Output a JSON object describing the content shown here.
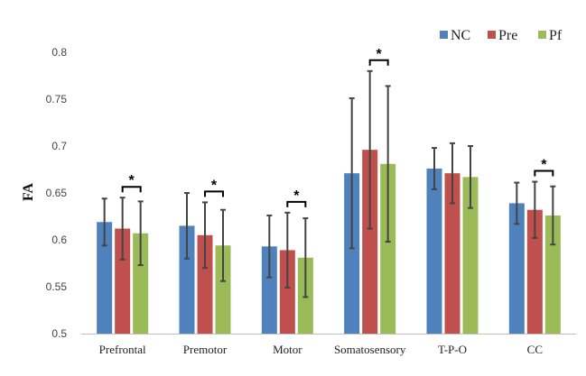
{
  "chart_data": {
    "type": "bar",
    "title": "",
    "xlabel": "",
    "ylabel": "FA",
    "ylim": [
      0.5,
      0.8
    ],
    "yticks": [
      "0.5",
      "0.55",
      "0.6",
      "0.65",
      "0.7",
      "0.75",
      "0.8"
    ],
    "categories": [
      "Prefrontal",
      "Premotor",
      "Motor",
      "Somatosensory",
      "T-P-O",
      "CC"
    ],
    "series": [
      {
        "name": "NC",
        "color": "#4f81bd",
        "values": [
          0.619,
          0.615,
          0.593,
          0.671,
          0.676,
          0.639
        ],
        "errors": [
          0.025,
          0.035,
          0.033,
          0.08,
          0.022,
          0.022
        ]
      },
      {
        "name": "Pre",
        "color": "#c0504d",
        "values": [
          0.612,
          0.605,
          0.589,
          0.696,
          0.671,
          0.632
        ],
        "errors": [
          0.033,
          0.035,
          0.04,
          0.084,
          0.032,
          0.03
        ]
      },
      {
        "name": "Pf",
        "color": "#9bbb59",
        "values": [
          0.607,
          0.594,
          0.581,
          0.681,
          0.667,
          0.626
        ],
        "errors": [
          0.034,
          0.038,
          0.042,
          0.083,
          0.033,
          0.031
        ]
      }
    ],
    "significance": [
      {
        "category": "Prefrontal",
        "between": [
          "Pre",
          "Pf"
        ],
        "label": "*"
      },
      {
        "category": "Premotor",
        "between": [
          "Pre",
          "Pf"
        ],
        "label": "*"
      },
      {
        "category": "Motor",
        "between": [
          "Pre",
          "Pf"
        ],
        "label": "*"
      },
      {
        "category": "Somatosensory",
        "between": [
          "Pre",
          "Pf"
        ],
        "label": "*"
      },
      {
        "category": "CC",
        "between": [
          "Pre",
          "Pf"
        ],
        "label": "*"
      }
    ],
    "legend_position": "top-right"
  }
}
